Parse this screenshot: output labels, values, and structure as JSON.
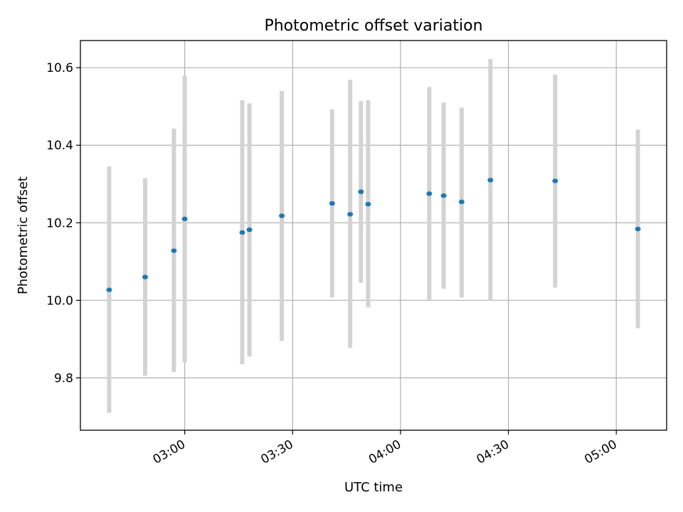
{
  "chart_data": {
    "type": "scatter",
    "title": "Photometric offset variation",
    "xlabel": "UTC time",
    "ylabel": "Photometric offset",
    "x_tick_labels": [
      "03:00",
      "03:30",
      "04:00",
      "04:30",
      "05:00"
    ],
    "x_tick_times": [
      "03:00",
      "03:30",
      "04:00",
      "04:30",
      "05:00"
    ],
    "y_tick_labels": [
      "9.8",
      "10.0",
      "10.2",
      "10.4",
      "10.6"
    ],
    "y_ticks": [
      9.8,
      10.0,
      10.2,
      10.4,
      10.6
    ],
    "xlim": [
      "02:31",
      "05:14"
    ],
    "ylim": [
      9.665,
      10.67
    ],
    "grid": true,
    "point_color": "#1f77b4",
    "errorbar_color": "#d3d3d3",
    "points": [
      {
        "time": "02:39",
        "y": 10.027,
        "ylow": 9.71,
        "yhigh": 10.345
      },
      {
        "time": "02:49",
        "y": 10.06,
        "ylow": 9.805,
        "yhigh": 10.315
      },
      {
        "time": "02:57",
        "y": 10.128,
        "ylow": 9.815,
        "yhigh": 10.443
      },
      {
        "time": "03:00",
        "y": 10.21,
        "ylow": 9.84,
        "yhigh": 10.58
      },
      {
        "time": "03:16",
        "y": 10.175,
        "ylow": 9.835,
        "yhigh": 10.516
      },
      {
        "time": "03:18",
        "y": 10.182,
        "ylow": 9.855,
        "yhigh": 10.508
      },
      {
        "time": "03:27",
        "y": 10.218,
        "ylow": 9.895,
        "yhigh": 10.54
      },
      {
        "time": "03:41",
        "y": 10.25,
        "ylow": 10.007,
        "yhigh": 10.492
      },
      {
        "time": "03:46",
        "y": 10.222,
        "ylow": 9.877,
        "yhigh": 10.569
      },
      {
        "time": "03:49",
        "y": 10.28,
        "ylow": 10.045,
        "yhigh": 10.514
      },
      {
        "time": "03:51",
        "y": 10.248,
        "ylow": 9.982,
        "yhigh": 10.516
      },
      {
        "time": "04:08",
        "y": 10.275,
        "ylow": 10.002,
        "yhigh": 10.55
      },
      {
        "time": "04:12",
        "y": 10.27,
        "ylow": 10.03,
        "yhigh": 10.51
      },
      {
        "time": "04:17",
        "y": 10.254,
        "ylow": 10.007,
        "yhigh": 10.497
      },
      {
        "time": "04:25",
        "y": 10.31,
        "ylow": 10.0,
        "yhigh": 10.622
      },
      {
        "time": "04:43",
        "y": 10.308,
        "ylow": 10.033,
        "yhigh": 10.582
      },
      {
        "time": "05:06",
        "y": 10.184,
        "ylow": 9.928,
        "yhigh": 10.44
      }
    ]
  }
}
